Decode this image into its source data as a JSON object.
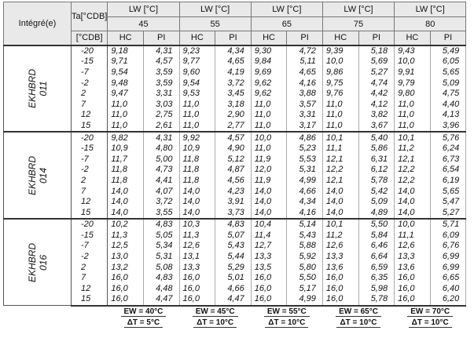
{
  "header": {
    "corner": "Intégré(e)",
    "ta_label": "Ta[°CDB]",
    "ta_unit": "[°CDB]",
    "lw_labels": [
      "LW [°C]",
      "LW [°C]",
      "LW [°C]",
      "LW [°C]",
      "LW [°C]"
    ],
    "lw_temps": [
      "45",
      "55",
      "65",
      "75",
      "80"
    ],
    "columns": [
      "HC",
      "PI",
      "HC",
      "PI",
      "HC",
      "PI",
      "HC",
      "PI",
      "HC",
      "PI"
    ]
  },
  "groups": [
    {
      "model": "EKHBRD",
      "size": "011",
      "rows": [
        {
          "ta": "-20",
          "values": [
            "9,18",
            "4,31",
            "9,23",
            "4,34",
            "9,30",
            "4,72",
            "9,39",
            "5,18",
            "9,43",
            "5,49"
          ]
        },
        {
          "ta": "-15",
          "values": [
            "9,71",
            "4,57",
            "9,77",
            "4,65",
            "9,84",
            "5,11",
            "10,0",
            "5,69",
            "10,0",
            "6,05"
          ]
        },
        {
          "ta": "-7",
          "values": [
            "9,54",
            "3,59",
            "9,60",
            "4,19",
            "9,69",
            "4,65",
            "9,86",
            "5,27",
            "9,91",
            "5,65"
          ]
        },
        {
          "ta": "-2",
          "values": [
            "9,48",
            "3,59",
            "9,54",
            "3,72",
            "9,62",
            "4,16",
            "9,75",
            "4,74",
            "9,79",
            "5,09"
          ]
        },
        {
          "ta": "2",
          "values": [
            "9,47",
            "3,31",
            "9,53",
            "3,45",
            "9,62",
            "3,88",
            "9,76",
            "4,42",
            "9,80",
            "4,75"
          ]
        },
        {
          "ta": "7",
          "values": [
            "11,0",
            "3,03",
            "11,0",
            "3,18",
            "11,0",
            "3,57",
            "11,0",
            "4,12",
            "11,0",
            "4,40"
          ]
        },
        {
          "ta": "12",
          "values": [
            "11,0",
            "2,75",
            "11,0",
            "2,90",
            "11,0",
            "3,31",
            "11,0",
            "3,82",
            "11,0",
            "4,13"
          ]
        },
        {
          "ta": "15",
          "values": [
            "11,0",
            "2,61",
            "11,0",
            "2,77",
            "11,0",
            "3,17",
            "11,0",
            "3,67",
            "11,0",
            "3,96"
          ]
        }
      ]
    },
    {
      "model": "EKHBRD",
      "size": "014",
      "rows": [
        {
          "ta": "-20",
          "values": [
            "9,82",
            "4,31",
            "9,92",
            "4,57",
            "10,0",
            "4,86",
            "10,1",
            "5,40",
            "10,1",
            "5,76"
          ]
        },
        {
          "ta": "-15",
          "values": [
            "10,9",
            "4,80",
            "10,9",
            "4,90",
            "11,0",
            "5,23",
            "11,1",
            "5,86",
            "11,2",
            "6,24"
          ]
        },
        {
          "ta": "-7",
          "values": [
            "11,7",
            "5,00",
            "11,8",
            "5,12",
            "11,9",
            "5,53",
            "12,1",
            "6,31",
            "12,1",
            "6,73"
          ]
        },
        {
          "ta": "-2",
          "values": [
            "11,8",
            "4,73",
            "11,8",
            "4,87",
            "12,0",
            "5,31",
            "12,2",
            "6,12",
            "12,2",
            "6,54"
          ]
        },
        {
          "ta": "2",
          "values": [
            "11,8",
            "4,41",
            "11,8",
            "4,56",
            "11,9",
            "4,99",
            "12,1",
            "5,78",
            "12,2",
            "6,19"
          ]
        },
        {
          "ta": "7",
          "values": [
            "14,0",
            "4,07",
            "14,0",
            "4,23",
            "14,0",
            "4,66",
            "14,0",
            "5,42",
            "14,0",
            "5,65"
          ]
        },
        {
          "ta": "12",
          "values": [
            "14,0",
            "3,72",
            "14,0",
            "3,91",
            "14,0",
            "4,34",
            "14,0",
            "5,09",
            "14,0",
            "5,47"
          ]
        },
        {
          "ta": "15",
          "values": [
            "14,0",
            "3,55",
            "14,0",
            "3,73",
            "14,0",
            "4,16",
            "14,0",
            "4,89",
            "14,0",
            "5,27"
          ]
        }
      ]
    },
    {
      "model": "EKHBRD",
      "size": "016",
      "rows": [
        {
          "ta": "-20",
          "values": [
            "10,2",
            "4,83",
            "10,3",
            "4,83",
            "10,4",
            "5,14",
            "10,1",
            "5,50",
            "10,0",
            "5,71"
          ]
        },
        {
          "ta": "-15",
          "values": [
            "11,3",
            "5,05",
            "11,3",
            "5,07",
            "11,4",
            "5,43",
            "11,2",
            "5,84",
            "11,1",
            "6,09"
          ]
        },
        {
          "ta": "-7",
          "values": [
            "12,5",
            "5,34",
            "12,6",
            "5,43",
            "12,7",
            "5,88",
            "12,6",
            "6,46",
            "12,6",
            "6,76"
          ]
        },
        {
          "ta": "-2",
          "values": [
            "13,0",
            "5,31",
            "13,1",
            "5,44",
            "13,3",
            "5,92",
            "13,3",
            "6,64",
            "13,3",
            "6,99"
          ]
        },
        {
          "ta": "2",
          "values": [
            "13,2",
            "5,08",
            "13,3",
            "5,29",
            "13,5",
            "5,80",
            "13,6",
            "6,59",
            "13,6",
            "6,99"
          ]
        },
        {
          "ta": "7",
          "values": [
            "16,0",
            "4,83",
            "16,0",
            "5,01",
            "16,0",
            "5,50",
            "16,0",
            "6,35",
            "16,0",
            "6,65"
          ]
        },
        {
          "ta": "12",
          "values": [
            "16,0",
            "4,48",
            "16,0",
            "4,66",
            "16,0",
            "5,17",
            "16,0",
            "5,98",
            "16,0",
            "6,40"
          ]
        },
        {
          "ta": "15",
          "values": [
            "16,0",
            "4,47",
            "16,0",
            "4,47",
            "16,0",
            "4,99",
            "16,0",
            "5,78",
            "16,0",
            "6,20"
          ]
        }
      ]
    }
  ],
  "footer": {
    "ew": [
      "EW = 40°C",
      "EW = 45°C",
      "EW = 55°C",
      "EW = 65°C",
      "EW = 70°C"
    ],
    "dt": [
      "ΔT = 5°C",
      "ΔT = 10°C",
      "ΔT = 10°C",
      "ΔT = 10°C",
      "ΔT = 10°C"
    ]
  }
}
